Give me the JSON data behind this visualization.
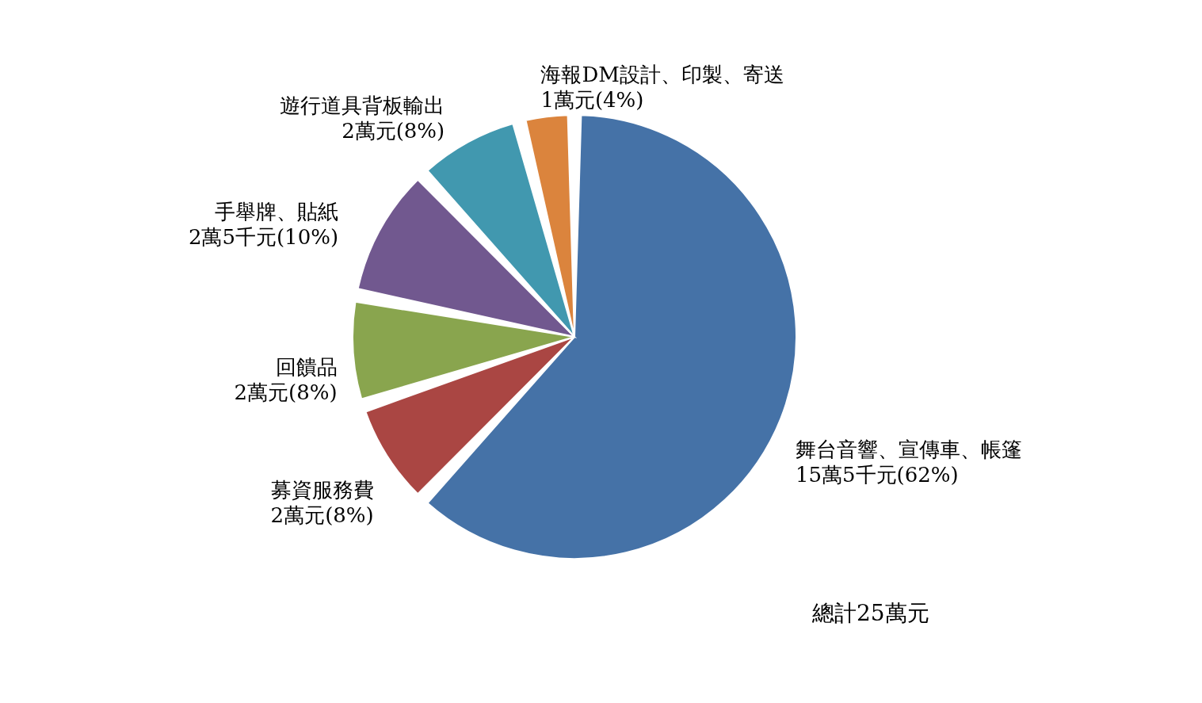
{
  "chart_data": {
    "type": "pie",
    "categories": [
      "舞台音響、宣傳車、帳篷",
      "募資服務費",
      "回饋品",
      "手舉牌、貼紙",
      "遊行道具背板輸出",
      "海報DM設計、印製、寄送"
    ],
    "values": [
      15.5,
      2,
      2,
      2.5,
      2,
      1
    ],
    "colors": [
      "#4572a7",
      "#aa4643",
      "#89a54e",
      "#71588f",
      "#4198af",
      "#db843d"
    ],
    "value_labels": [
      "15萬5千元(62%)",
      "2萬元(8%)",
      "2萬元(8%)",
      "2萬5千元(10%)",
      "2萬元(8%)",
      "1萬元(4%)"
    ],
    "annotations": [
      "總計25萬元"
    ],
    "legend": false
  }
}
